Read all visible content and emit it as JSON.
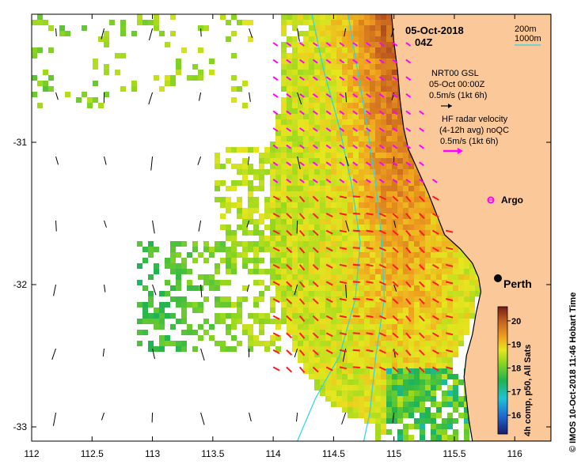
{
  "map": {
    "date": "05-Oct-2018",
    "time": "04Z",
    "contour_legend": [
      "200m",
      "1000m"
    ],
    "ocean_color": "#ffffff",
    "land_color": "#fbc999",
    "coastline_color": "#000000",
    "contour_color": "#28d5e8"
  },
  "axes": {
    "lon_ticks": [
      "112",
      "112.5",
      "113",
      "113.5",
      "114",
      "114.5",
      "115",
      "115.5",
      "116"
    ],
    "lat_ticks": [
      "-31",
      "-32",
      "-33"
    ],
    "lon_range": [
      112,
      116.3
    ],
    "lat_range": [
      -33.1,
      -30.1
    ]
  },
  "gsl_legend": {
    "title": "NRT00 GSL",
    "date": "05-Oct 00:00Z",
    "scale": "0.5m/s (1kt 6h)",
    "arrow_color": "#000000"
  },
  "radar_legend": {
    "line1": "HF radar velocity",
    "line2": "(4-12h avg) noQC",
    "scale": "0.5m/s (1kt 6h)",
    "arrow_color": "#ff00ff"
  },
  "places": {
    "argo": {
      "label": "Argo",
      "lon": 115.77,
      "lat": -31.4,
      "color": "#ff00ff"
    },
    "perth": {
      "label": "Perth",
      "lon": 115.86,
      "lat": -31.95
    }
  },
  "colorbar": {
    "title": "4h comp, p50, All Sats",
    "ticks": [
      "20",
      "19",
      "18",
      "17",
      "16"
    ],
    "range": [
      15.2,
      20.6
    ]
  },
  "credit": "© IMOS 10-Oct-2018 11:46 Hobart Time"
}
